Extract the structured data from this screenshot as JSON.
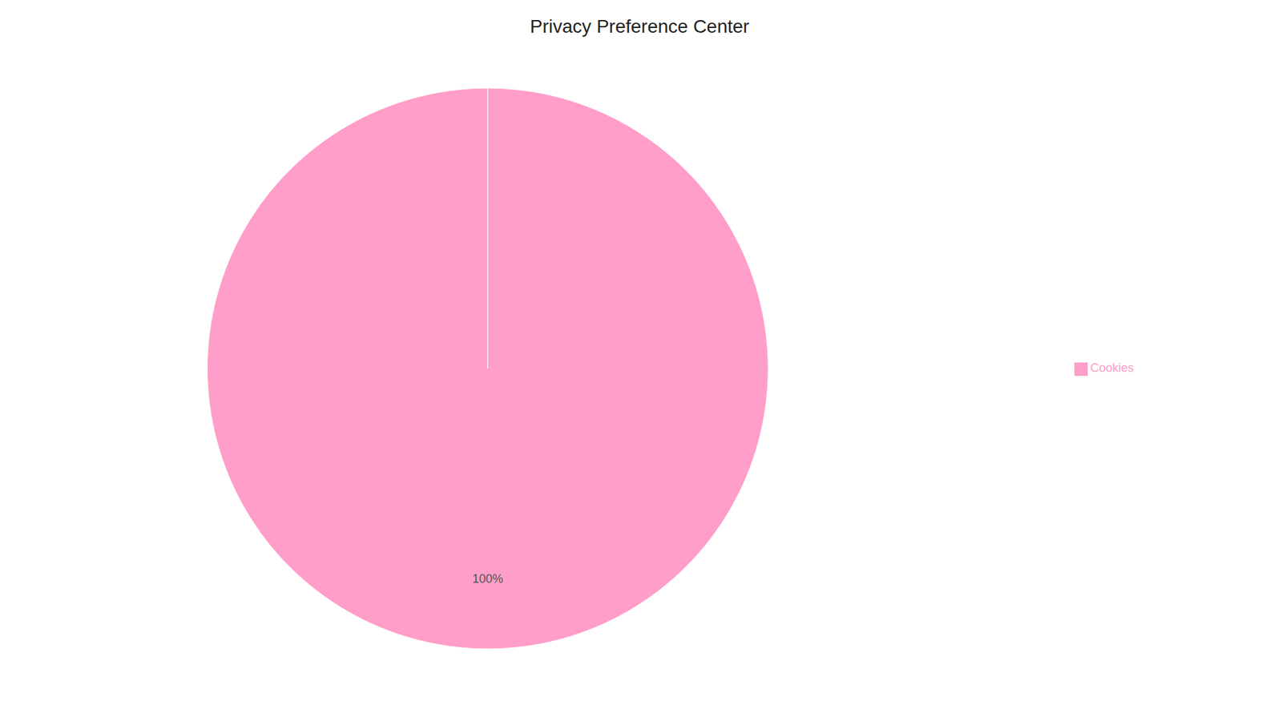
{
  "chart_data": {
    "type": "pie",
    "title": "Privacy Preference Center",
    "categories": [
      "Cookies"
    ],
    "values": [
      100
    ],
    "value_labels": [
      "100%"
    ],
    "colors": [
      "#FF9EC8"
    ],
    "data_labels": true,
    "legend": "right"
  }
}
